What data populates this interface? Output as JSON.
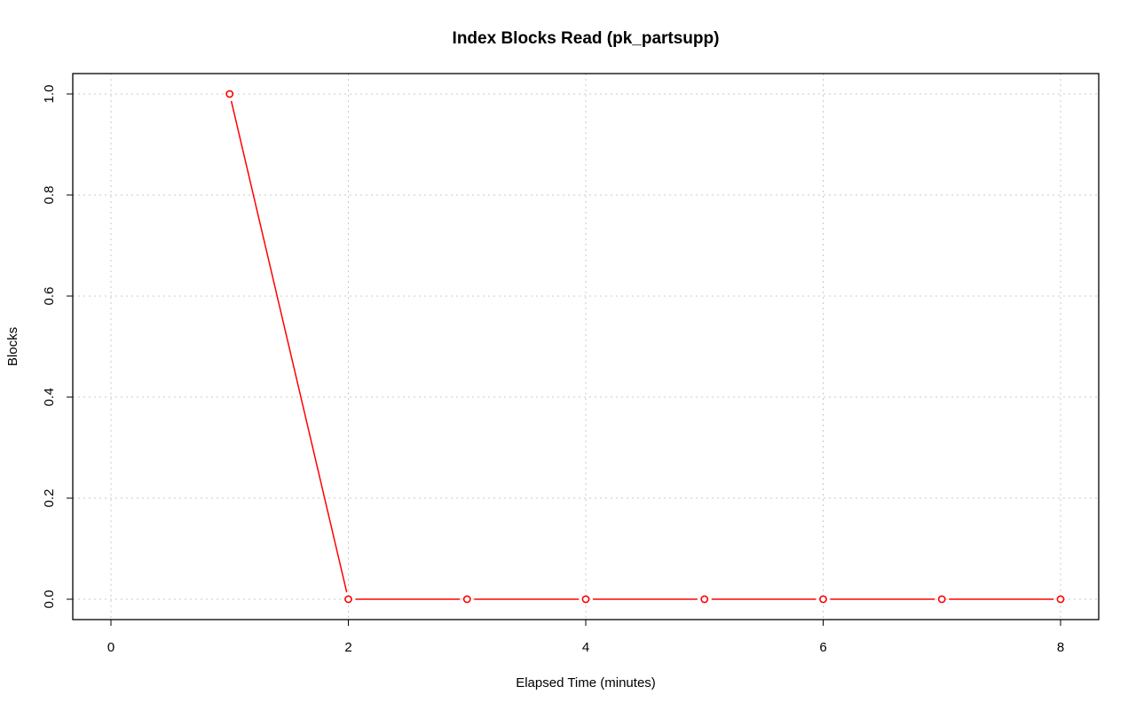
{
  "chart_data": {
    "type": "line",
    "title": "Index Blocks Read (pk_partsupp)",
    "xlabel": "Elapsed Time (minutes)",
    "ylabel": "Blocks",
    "xlim": [
      0,
      8
    ],
    "ylim": [
      0,
      1
    ],
    "x_ticks": [
      "0",
      "2",
      "4",
      "6",
      "8"
    ],
    "y_ticks": [
      "0.0",
      "0.2",
      "0.4",
      "0.6",
      "0.8",
      "1.0"
    ],
    "grid": true,
    "series": [
      {
        "color": "#ff0000",
        "marker": "open-circle",
        "x": [
          1,
          2,
          3,
          4,
          5,
          6,
          7,
          8
        ],
        "y": [
          1,
          0,
          0,
          0,
          0,
          0,
          0,
          0
        ]
      }
    ]
  }
}
